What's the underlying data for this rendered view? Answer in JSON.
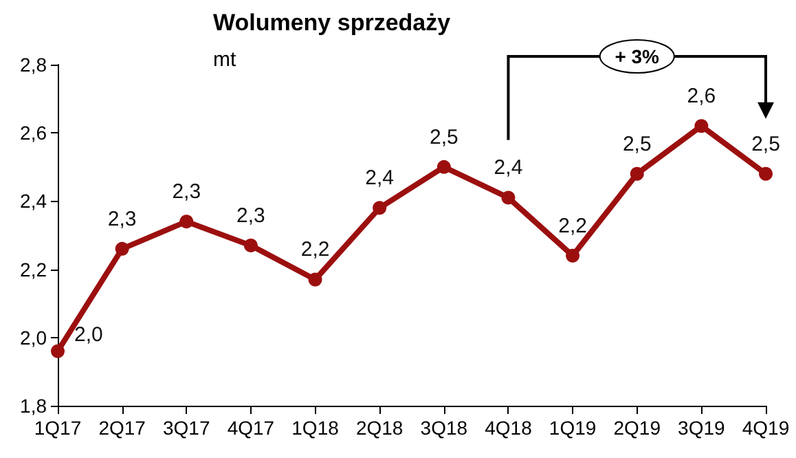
{
  "chart_data": {
    "type": "line",
    "title": "Wolumeny sprzedaży",
    "subtitle": "mt",
    "categories": [
      "1Q17",
      "2Q17",
      "3Q17",
      "4Q17",
      "1Q18",
      "2Q18",
      "3Q18",
      "4Q18",
      "1Q19",
      "2Q19",
      "3Q19",
      "4Q19"
    ],
    "series": [
      {
        "color": "#9c0f0f",
        "values": [
          1.96,
          2.26,
          2.34,
          2.27,
          2.17,
          2.38,
          2.5,
          2.41,
          2.24,
          2.48,
          2.62,
          2.48
        ],
        "value_labels": [
          "2,0",
          "2,3",
          "2,3",
          "2,3",
          "2,2",
          "2,4",
          "2,5",
          "2,4",
          "2,2",
          "2,5",
          "2,6",
          "2,5"
        ]
      }
    ],
    "ylim": [
      1.8,
      2.8
    ],
    "yticks": [
      {
        "value": 1.8,
        "label": "1,8"
      },
      {
        "value": 2.0,
        "label": "2,0"
      },
      {
        "value": 2.2,
        "label": "2,2"
      },
      {
        "value": 2.4,
        "label": "2,4"
      },
      {
        "value": 2.6,
        "label": "2,6"
      },
      {
        "value": 2.8,
        "label": "2,8"
      }
    ],
    "grid": false,
    "marker": "circle",
    "line_style": "solid",
    "annotations": [
      "+ 3%"
    ]
  }
}
